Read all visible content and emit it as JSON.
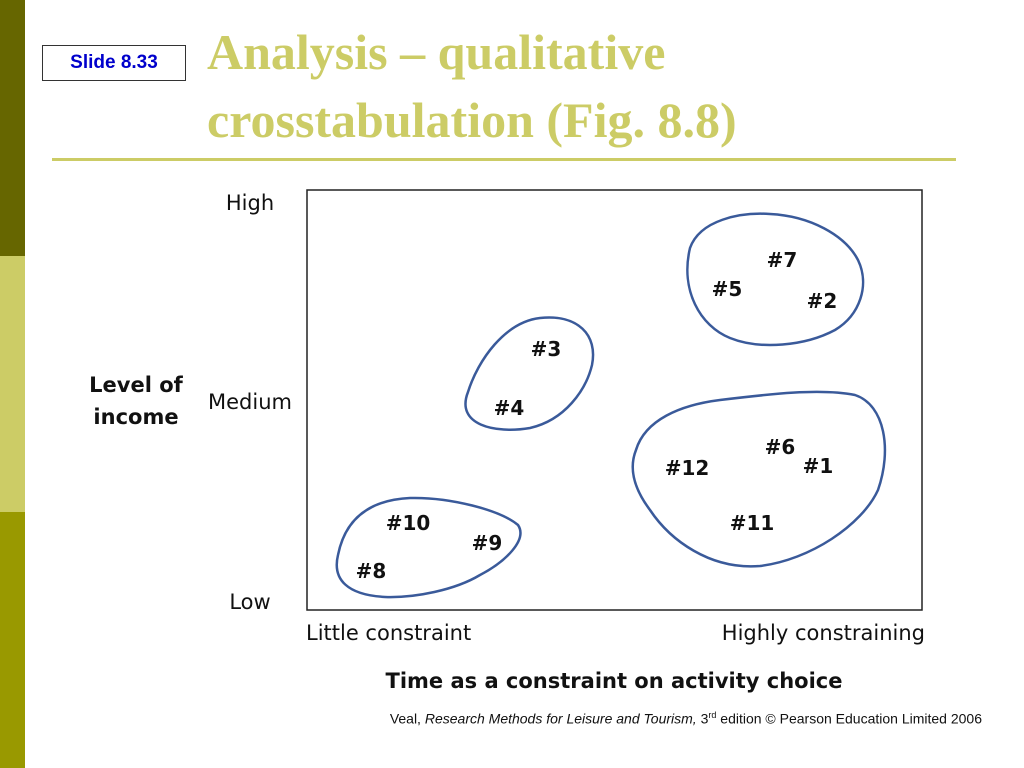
{
  "slide_number": "Slide 8.33",
  "title": {
    "line1": "Analysis – qualitative",
    "line2": "crosstabulation (Fig. 8.8)"
  },
  "figure": {
    "y_axis_title_line1": "Level of",
    "y_axis_title_line2": "income",
    "y_levels": {
      "high": "High",
      "medium": "Medium",
      "low": "Low"
    },
    "x_levels": {
      "left": "Little constraint",
      "right": "Highly constraining"
    },
    "x_axis_title": "Time as a constraint on activity choice",
    "cases": {
      "c1": "#1",
      "c2": "#2",
      "c3": "#3",
      "c4": "#4",
      "c5": "#5",
      "c6": "#6",
      "c7": "#7",
      "c8": "#8",
      "c9": "#9",
      "c10": "#10",
      "c11": "#11",
      "c12": "#12"
    }
  },
  "citation": {
    "author": "Veal, ",
    "work": "Research Methods for Leisure and Tourism,",
    "edition_num": " 3",
    "edition_sup": "rd",
    "rest": " edition © Pearson Education Limited 2006"
  }
}
